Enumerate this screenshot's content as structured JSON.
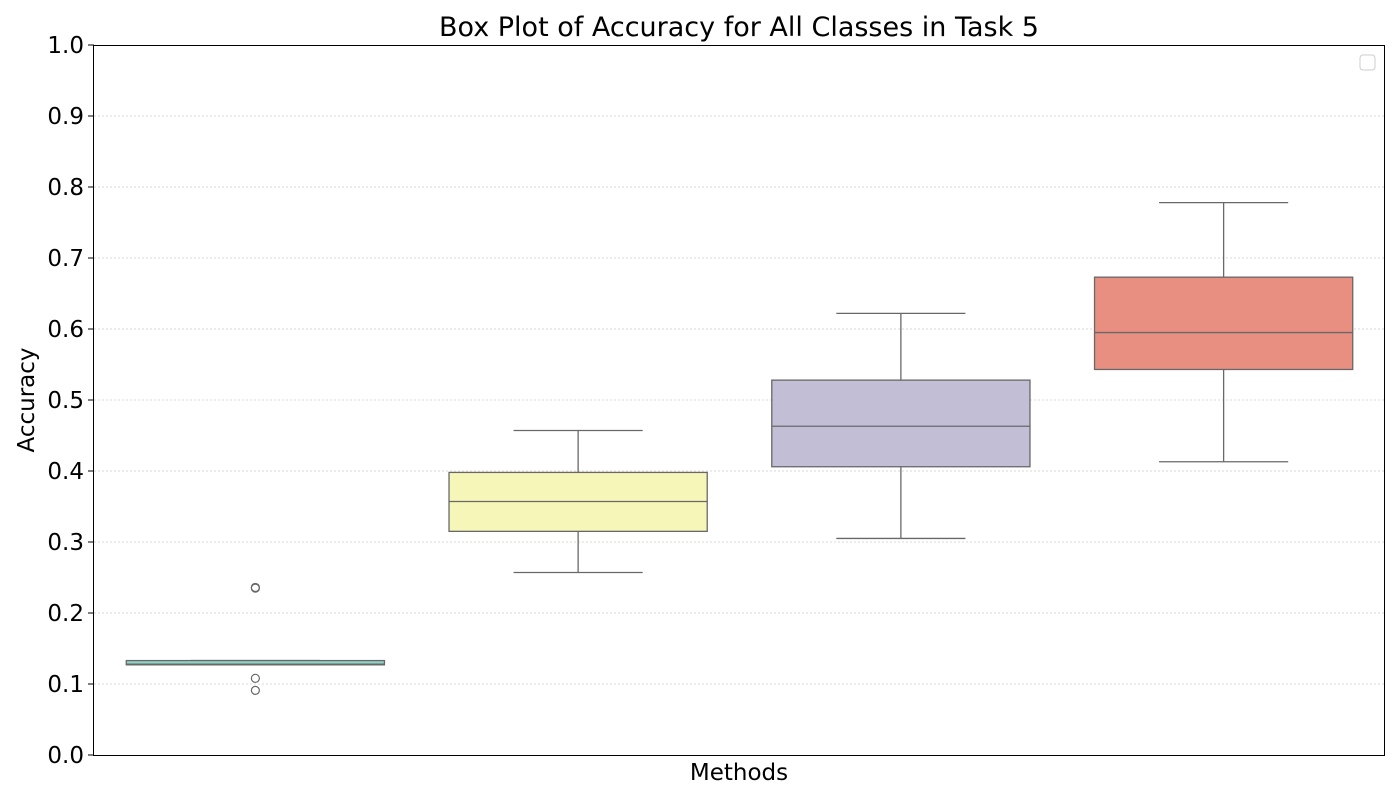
{
  "chart_data": {
    "type": "box",
    "title": "Box Plot of Accuracy for All Classes in Task 5",
    "xlabel": "Methods",
    "ylabel": "Accuracy",
    "ylim": [
      0.0,
      1.0
    ],
    "yticks": [
      "0.0",
      "0.1",
      "0.2",
      "0.3",
      "0.4",
      "0.5",
      "0.6",
      "0.7",
      "0.8",
      "0.9",
      "1.0"
    ],
    "grid": true,
    "legend": "top-right, empty",
    "boxes": [
      {
        "color": "#8dd3c7",
        "whisker_low": 0.127,
        "q1": 0.127,
        "median": 0.128,
        "q3": 0.133,
        "whisker_high": 0.133,
        "outliers": [
          0.235,
          0.236,
          0.108,
          0.091
        ]
      },
      {
        "color": "#f6f6b8",
        "whisker_low": 0.257,
        "q1": 0.315,
        "median": 0.357,
        "q3": 0.398,
        "whisker_high": 0.457
      },
      {
        "color": "#c1bed6",
        "whisker_low": 0.305,
        "q1": 0.406,
        "median": 0.463,
        "q3": 0.528,
        "whisker_high": 0.622
      },
      {
        "color": "#e98f82",
        "whisker_low": 0.413,
        "q1": 0.543,
        "median": 0.595,
        "q3": 0.673,
        "whisker_high": 0.778
      }
    ]
  }
}
